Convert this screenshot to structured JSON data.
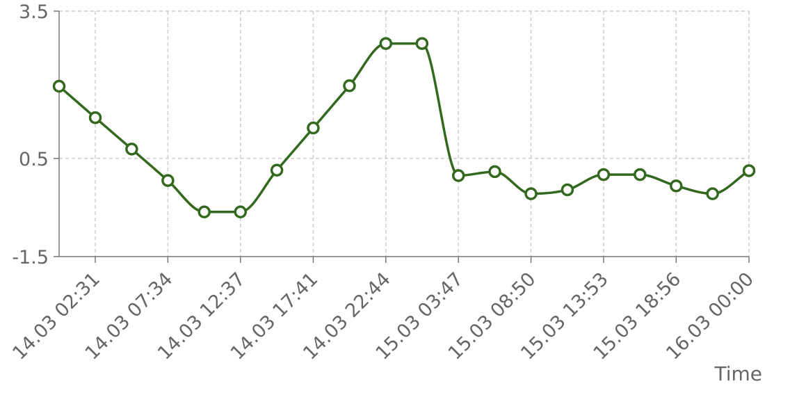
{
  "chart_data": {
    "type": "line",
    "xlabel": "Time",
    "ylabel": "",
    "ylim": [
      -1.5,
      3.5
    ],
    "grid": true,
    "x_ticks": [
      "14.03 02:31",
      "14.03 07:34",
      "14.03 12:37",
      "14.03 17:41",
      "14.03 22:44",
      "15.03 03:47",
      "15.03 08:50",
      "15.03 13:53",
      "15.03 18:56",
      "16.03 00:00"
    ],
    "y_ticks": [
      "-1.5",
      "0.5",
      "3.5"
    ],
    "series": [
      {
        "color": "#33691e",
        "points": [
          {
            "x": "14.03 00:00",
            "y": 1.97
          },
          {
            "x": "14.03 02:31",
            "y": 1.33
          },
          {
            "x": "14.03 05:03",
            "y": 0.69
          },
          {
            "x": "14.03 07:34",
            "y": 0.05
          },
          {
            "x": "14.03 10:06",
            "y": -0.59
          },
          {
            "x": "14.03 12:37",
            "y": -0.59
          },
          {
            "x": "14.03 15:09",
            "y": 0.26
          },
          {
            "x": "14.03 17:41",
            "y": 1.12
          },
          {
            "x": "14.03 20:12",
            "y": 1.98
          },
          {
            "x": "14.03 22:44",
            "y": 2.84
          },
          {
            "x": "15.03 01:15",
            "y": 2.84
          },
          {
            "x": "15.03 03:47",
            "y": 0.15
          },
          {
            "x": "15.03 06:19",
            "y": 0.23
          },
          {
            "x": "15.03 08:50",
            "y": -0.22
          },
          {
            "x": "15.03 11:22",
            "y": -0.14
          },
          {
            "x": "15.03 13:53",
            "y": 0.17
          },
          {
            "x": "15.03 16:25",
            "y": 0.17
          },
          {
            "x": "15.03 18:56",
            "y": -0.06
          },
          {
            "x": "15.03 21:28",
            "y": -0.22
          },
          {
            "x": "16.03 00:00",
            "y": 0.25
          }
        ]
      }
    ]
  }
}
